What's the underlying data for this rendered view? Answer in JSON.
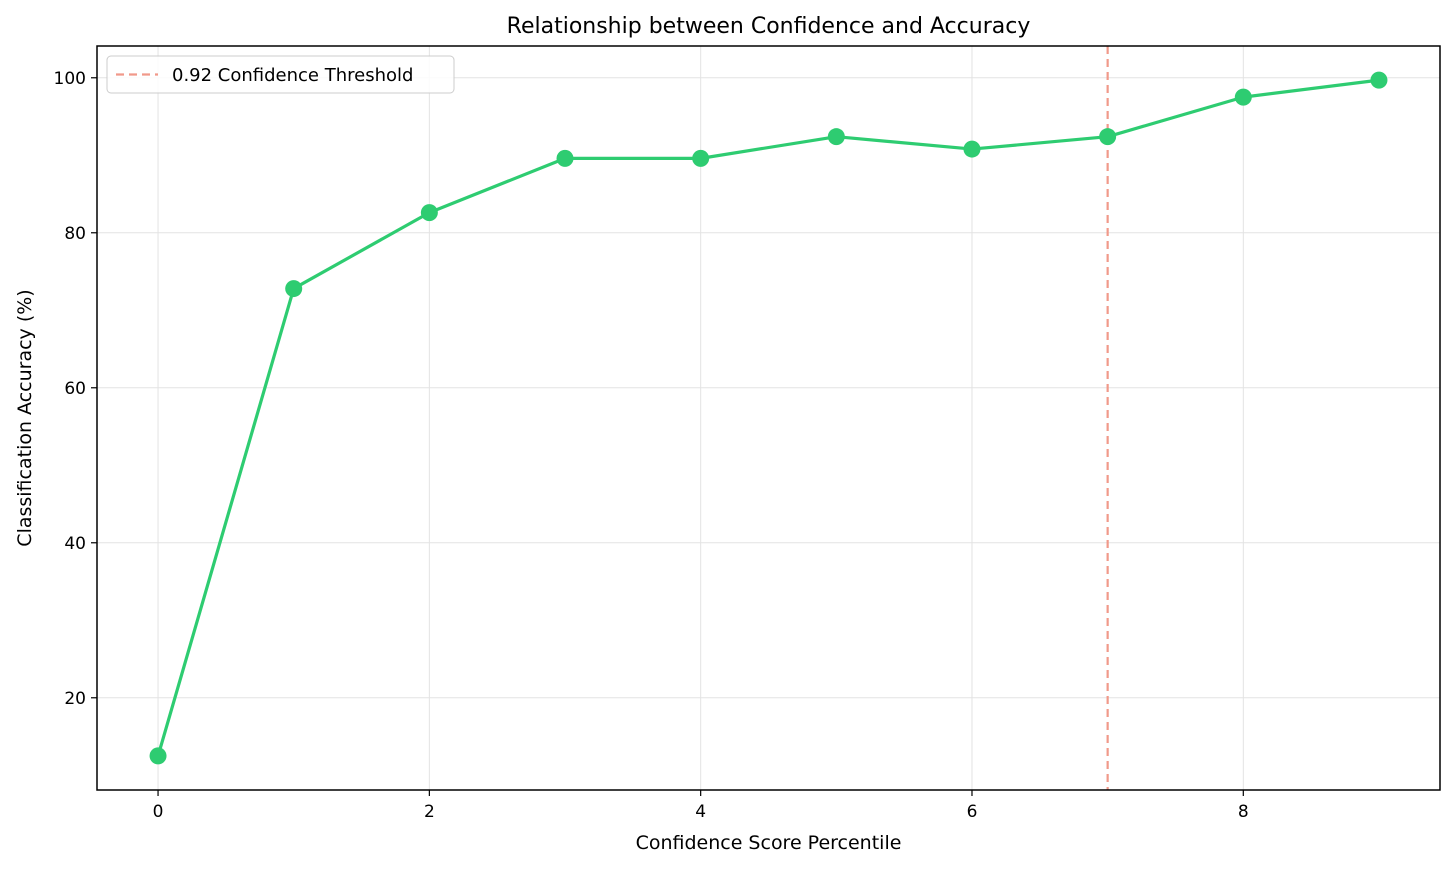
{
  "chart_data": {
    "type": "line",
    "title": "Relationship between Confidence and Accuracy",
    "xlabel": "Confidence Score Percentile",
    "ylabel": "Classification Accuracy (%)",
    "x": [
      0,
      1,
      2,
      3,
      4,
      5,
      6,
      7,
      8,
      9
    ],
    "series": [
      {
        "values": [
          12.5,
          72.8,
          82.6,
          89.6,
          89.6,
          92.4,
          90.8,
          92.4,
          97.5,
          99.7
        ],
        "color": "#2ecc71",
        "marker": "circle"
      }
    ],
    "xlim": [
      -0.45,
      9.45
    ],
    "ylim": [
      8.1,
      104.1
    ],
    "xticks": [
      0,
      2,
      4,
      6,
      8
    ],
    "yticks": [
      20,
      40,
      60,
      80,
      100
    ],
    "grid": true,
    "reference_lines": [
      {
        "orientation": "vertical",
        "x": 7,
        "label": "0.92 Confidence Threshold",
        "color": "#f1998a",
        "style": "dashed"
      }
    ],
    "legend": {
      "placement": "top-left",
      "entries": [
        "0.92 Confidence Threshold"
      ]
    }
  }
}
